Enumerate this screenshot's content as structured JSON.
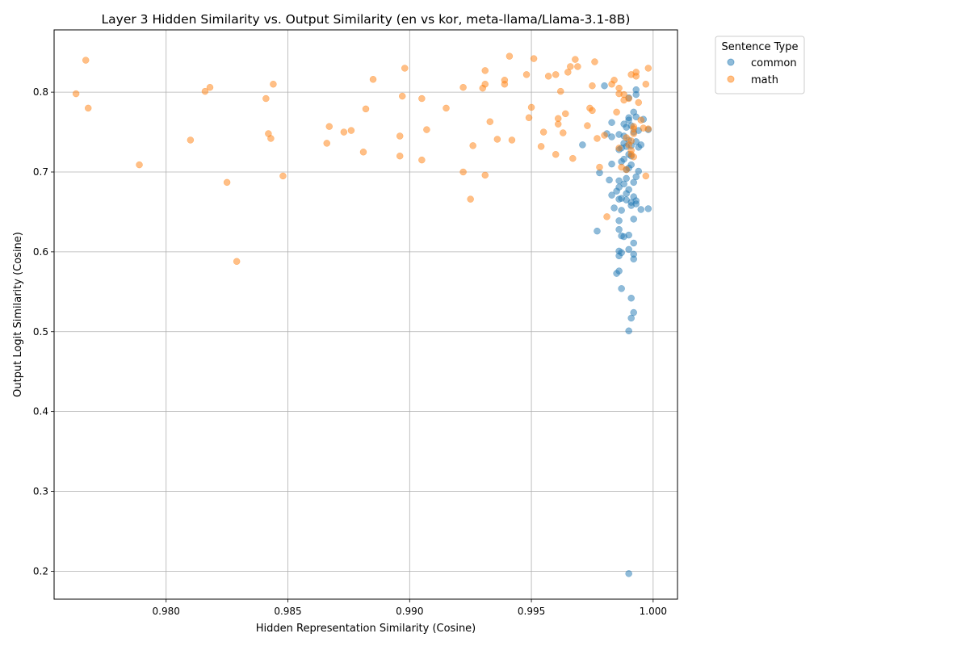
{
  "chart_data": {
    "type": "scatter",
    "title": "Layer 3 Hidden Similarity vs. Output Similarity (en vs kor, meta-llama/Llama-3.1-8B)",
    "xlabel": "Hidden Representation Similarity (Cosine)",
    "ylabel": "Output Logit Similarity (Cosine)",
    "xlim": [
      0.9754,
      1.001
    ],
    "ylim": [
      0.165,
      0.878
    ],
    "xticks": [
      0.98,
      0.985,
      0.99,
      0.995,
      1.0
    ],
    "xtick_labels": [
      "0.980",
      "0.985",
      "0.990",
      "0.995",
      "1.000"
    ],
    "yticks": [
      0.2,
      0.3,
      0.4,
      0.5,
      0.6,
      0.7,
      0.8
    ],
    "ytick_labels": [
      "0.2",
      "0.3",
      "0.4",
      "0.5",
      "0.6",
      "0.7",
      "0.8"
    ],
    "grid": true,
    "legend": {
      "title": "Sentence Type",
      "placement": "outside-top-right"
    },
    "series": [
      {
        "name": "common",
        "color": "#1f77b4",
        "points": [
          [
            0.998,
            0.808
          ],
          [
            0.9993,
            0.803
          ],
          [
            0.9993,
            0.797
          ],
          [
            0.999,
            0.793
          ],
          [
            0.9992,
            0.775
          ],
          [
            0.9993,
            0.769
          ],
          [
            0.999,
            0.768
          ],
          [
            0.9996,
            0.766
          ],
          [
            0.999,
            0.765
          ],
          [
            0.9983,
            0.762
          ],
          [
            0.9988,
            0.76
          ],
          [
            0.9991,
            0.758
          ],
          [
            0.9989,
            0.756
          ],
          [
            0.9998,
            0.753
          ],
          [
            0.9994,
            0.752
          ],
          [
            0.9992,
            0.75
          ],
          [
            0.9981,
            0.748
          ],
          [
            0.9986,
            0.747
          ],
          [
            0.9988,
            0.745
          ],
          [
            0.9983,
            0.744
          ],
          [
            0.999,
            0.74
          ],
          [
            0.9993,
            0.738
          ],
          [
            0.9988,
            0.736
          ],
          [
            0.9971,
            0.734
          ],
          [
            0.9995,
            0.734
          ],
          [
            0.9991,
            0.733
          ],
          [
            0.9989,
            0.732
          ],
          [
            0.9994,
            0.731
          ],
          [
            0.9987,
            0.73
          ],
          [
            0.9986,
            0.728
          ],
          [
            0.999,
            0.722
          ],
          [
            0.9991,
            0.72
          ],
          [
            0.9988,
            0.716
          ],
          [
            0.9987,
            0.713
          ],
          [
            0.9983,
            0.71
          ],
          [
            0.9991,
            0.709
          ],
          [
            0.999,
            0.705
          ],
          [
            0.9989,
            0.703
          ],
          [
            0.9994,
            0.701
          ],
          [
            0.9978,
            0.699
          ],
          [
            0.9993,
            0.694
          ],
          [
            0.9989,
            0.692
          ],
          [
            0.9982,
            0.69
          ],
          [
            0.9986,
            0.689
          ],
          [
            0.9992,
            0.687
          ],
          [
            0.9988,
            0.685
          ],
          [
            0.9986,
            0.681
          ],
          [
            0.999,
            0.678
          ],
          [
            0.9985,
            0.676
          ],
          [
            0.9989,
            0.673
          ],
          [
            0.9983,
            0.671
          ],
          [
            0.9992,
            0.669
          ],
          [
            0.9987,
            0.667
          ],
          [
            0.9986,
            0.666
          ],
          [
            0.9989,
            0.665
          ],
          [
            0.9993,
            0.664
          ],
          [
            0.9991,
            0.662
          ],
          [
            0.9993,
            0.66
          ],
          [
            0.9991,
            0.658
          ],
          [
            0.9984,
            0.655
          ],
          [
            0.9995,
            0.653
          ],
          [
            0.9998,
            0.654
          ],
          [
            0.9987,
            0.652
          ],
          [
            0.9992,
            0.641
          ],
          [
            0.9986,
            0.639
          ],
          [
            0.9986,
            0.628
          ],
          [
            0.9977,
            0.626
          ],
          [
            0.999,
            0.621
          ],
          [
            0.9987,
            0.62
          ],
          [
            0.9988,
            0.619
          ],
          [
            0.9992,
            0.611
          ],
          [
            0.999,
            0.603
          ],
          [
            0.9986,
            0.601
          ],
          [
            0.9987,
            0.599
          ],
          [
            0.9992,
            0.597
          ],
          [
            0.9986,
            0.595
          ],
          [
            0.9992,
            0.591
          ],
          [
            0.9986,
            0.576
          ],
          [
            0.9985,
            0.573
          ],
          [
            0.9987,
            0.554
          ],
          [
            0.9991,
            0.542
          ],
          [
            0.9992,
            0.524
          ],
          [
            0.9991,
            0.517
          ],
          [
            0.999,
            0.501
          ],
          [
            0.999,
            0.197
          ]
        ]
      },
      {
        "name": "math",
        "color": "#ff7f0e",
        "points": [
          [
            0.9767,
            0.84
          ],
          [
            0.9763,
            0.798
          ],
          [
            0.9768,
            0.78
          ],
          [
            0.9789,
            0.709
          ],
          [
            0.981,
            0.74
          ],
          [
            0.9816,
            0.801
          ],
          [
            0.9818,
            0.806
          ],
          [
            0.9825,
            0.687
          ],
          [
            0.9829,
            0.588
          ],
          [
            0.9841,
            0.792
          ],
          [
            0.9842,
            0.748
          ],
          [
            0.9843,
            0.742
          ],
          [
            0.9844,
            0.81
          ],
          [
            0.9848,
            0.695
          ],
          [
            0.9866,
            0.736
          ],
          [
            0.9867,
            0.757
          ],
          [
            0.9873,
            0.75
          ],
          [
            0.9876,
            0.752
          ],
          [
            0.9881,
            0.725
          ],
          [
            0.9882,
            0.779
          ],
          [
            0.9885,
            0.816
          ],
          [
            0.9896,
            0.745
          ],
          [
            0.9896,
            0.72
          ],
          [
            0.9897,
            0.795
          ],
          [
            0.9898,
            0.83
          ],
          [
            0.9905,
            0.792
          ],
          [
            0.9905,
            0.715
          ],
          [
            0.9907,
            0.753
          ],
          [
            0.9915,
            0.78
          ],
          [
            0.9922,
            0.806
          ],
          [
            0.9922,
            0.7
          ],
          [
            0.9925,
            0.666
          ],
          [
            0.9926,
            0.733
          ],
          [
            0.993,
            0.805
          ],
          [
            0.9931,
            0.81
          ],
          [
            0.9931,
            0.827
          ],
          [
            0.9931,
            0.696
          ],
          [
            0.9933,
            0.763
          ],
          [
            0.9936,
            0.741
          ],
          [
            0.9939,
            0.81
          ],
          [
            0.9939,
            0.815
          ],
          [
            0.9941,
            0.845
          ],
          [
            0.9942,
            0.74
          ],
          [
            0.9948,
            0.822
          ],
          [
            0.9949,
            0.768
          ],
          [
            0.995,
            0.781
          ],
          [
            0.9951,
            0.842
          ],
          [
            0.9954,
            0.732
          ],
          [
            0.9955,
            0.75
          ],
          [
            0.9957,
            0.82
          ],
          [
            0.996,
            0.822
          ],
          [
            0.996,
            0.722
          ],
          [
            0.9961,
            0.767
          ],
          [
            0.9961,
            0.76
          ],
          [
            0.9962,
            0.801
          ],
          [
            0.9963,
            0.749
          ],
          [
            0.9964,
            0.773
          ],
          [
            0.9965,
            0.825
          ],
          [
            0.9966,
            0.832
          ],
          [
            0.9967,
            0.717
          ],
          [
            0.9968,
            0.841
          ],
          [
            0.9969,
            0.832
          ],
          [
            0.9973,
            0.758
          ],
          [
            0.9974,
            0.78
          ],
          [
            0.9975,
            0.808
          ],
          [
            0.9975,
            0.777
          ],
          [
            0.9976,
            0.838
          ],
          [
            0.9977,
            0.742
          ],
          [
            0.9978,
            0.706
          ],
          [
            0.998,
            0.746
          ],
          [
            0.9981,
            0.644
          ],
          [
            0.9983,
            0.81
          ],
          [
            0.9984,
            0.815
          ],
          [
            0.9985,
            0.775
          ],
          [
            0.9986,
            0.73
          ],
          [
            0.9986,
            0.805
          ],
          [
            0.9986,
            0.798
          ],
          [
            0.9987,
            0.706
          ],
          [
            0.9988,
            0.797
          ],
          [
            0.9988,
            0.79
          ],
          [
            0.9989,
            0.743
          ],
          [
            0.9989,
            0.703
          ],
          [
            0.999,
            0.734
          ],
          [
            0.999,
            0.792
          ],
          [
            0.9991,
            0.739
          ],
          [
            0.9991,
            0.822
          ],
          [
            0.9991,
            0.727
          ],
          [
            0.9991,
            0.722
          ],
          [
            0.9992,
            0.719
          ],
          [
            0.9992,
            0.748
          ],
          [
            0.9992,
            0.754
          ],
          [
            0.9992,
            0.757
          ],
          [
            0.9993,
            0.825
          ],
          [
            0.9993,
            0.82
          ],
          [
            0.9994,
            0.787
          ],
          [
            0.9995,
            0.765
          ],
          [
            0.9996,
            0.755
          ],
          [
            0.9997,
            0.81
          ],
          [
            0.9997,
            0.695
          ],
          [
            0.9998,
            0.83
          ],
          [
            0.9998,
            0.754
          ]
        ]
      }
    ]
  }
}
